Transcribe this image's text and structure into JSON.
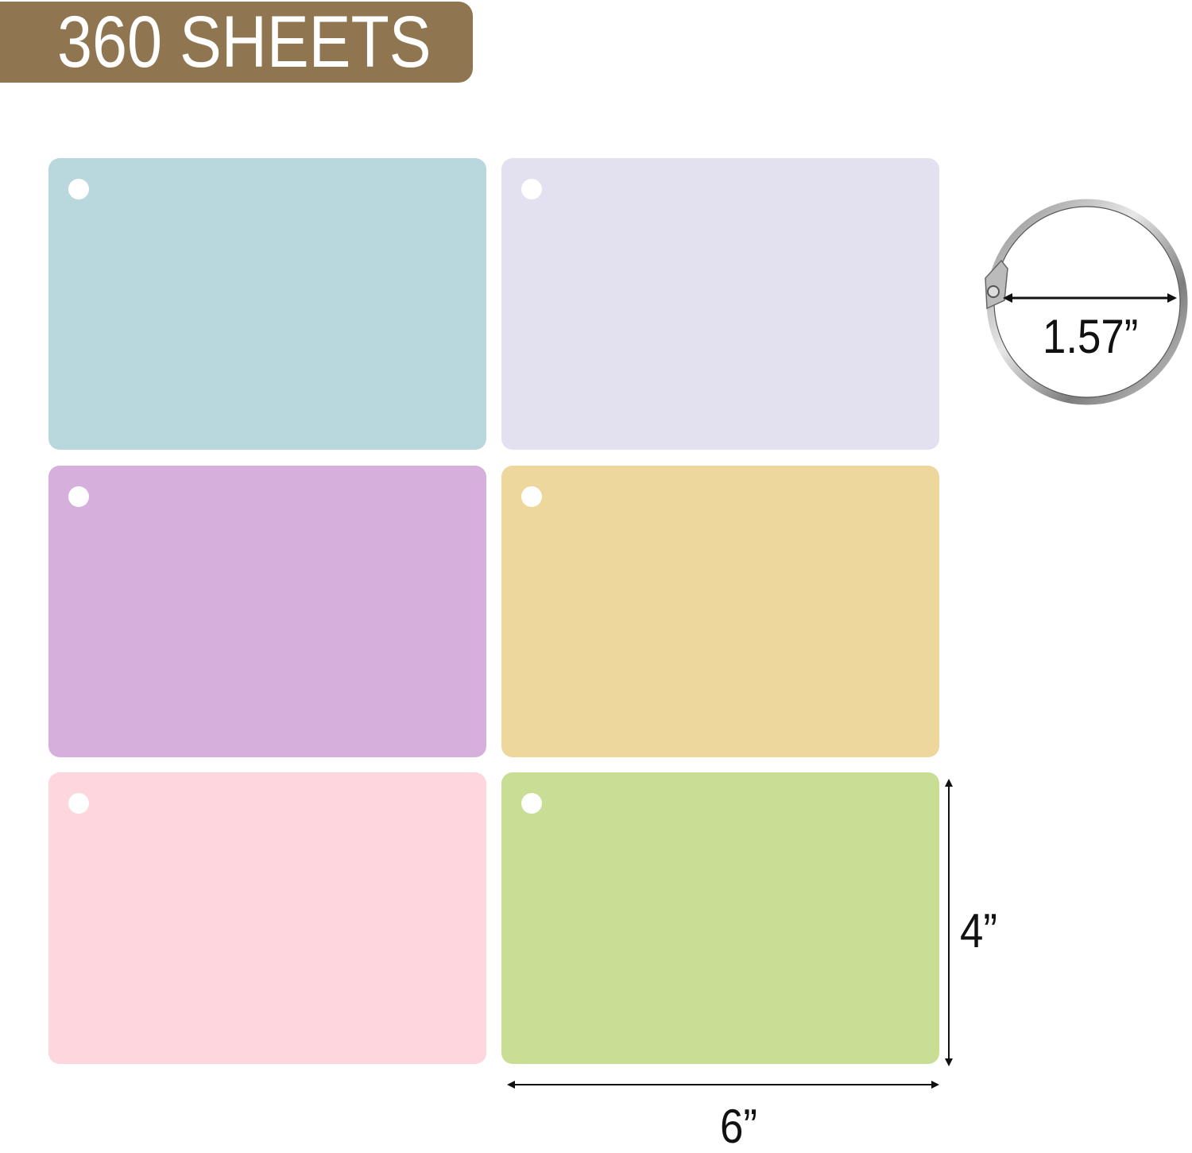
{
  "banner": {
    "label": "360 SHEETS",
    "color": "#8f7651"
  },
  "cards": [
    {
      "color": "#b9d8dd"
    },
    {
      "color": "#e3e1ef"
    },
    {
      "color": "#d6afdd"
    },
    {
      "color": "#eed79c"
    },
    {
      "color": "#fdd6de"
    },
    {
      "color": "#c9dd94"
    }
  ],
  "dimensions": {
    "ring_diameter": "1.57”",
    "card_height": "4”",
    "card_width": "6”"
  }
}
